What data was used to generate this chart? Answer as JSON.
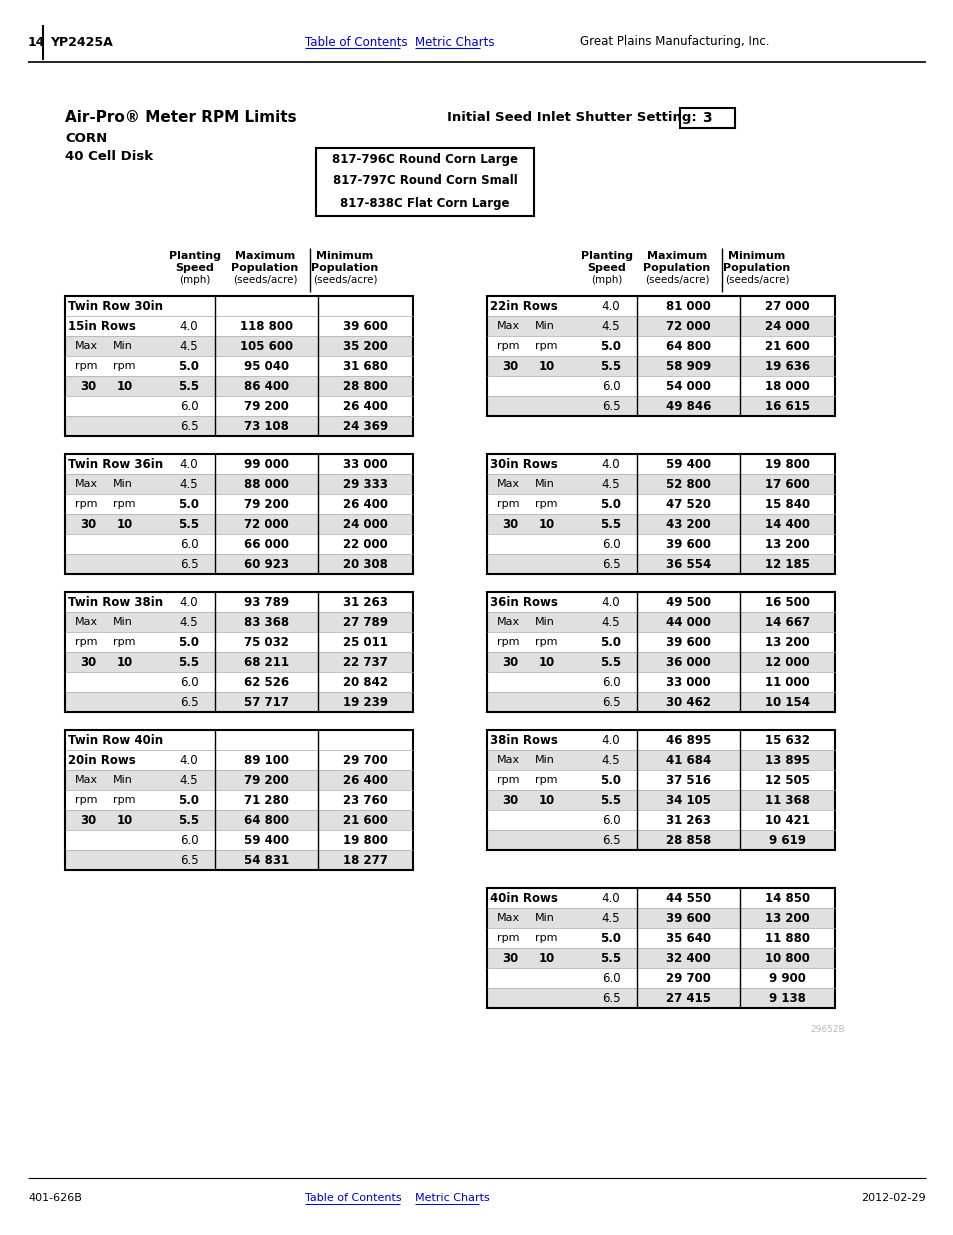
{
  "page_num": "14",
  "model": "YP2425A",
  "nav_links": [
    "Table of Contents",
    "Metric Charts"
  ],
  "company": "Great Plains Manufacturing, Inc.",
  "title": "Air-Pro® Meter RPM Limits",
  "subtitle1": "CORN",
  "subtitle2": "40 Cell Disk",
  "shutter_label": "Initial Seed Inlet Shutter Setting:",
  "shutter_value": "3",
  "disk_types": [
    "817-796C Round Corn Large",
    "817-797C Round Corn Small",
    "817-838C Flat Corn Large"
  ],
  "tables": [
    {
      "title_line1": "Twin Row 30in",
      "title_line2": "15in Rows",
      "speeds": [
        "4.0",
        "4.5",
        "5.0",
        "5.5",
        "6.0",
        "6.5"
      ],
      "max_pop": [
        "118 800",
        "105 600",
        "95 040",
        "86 400",
        "79 200",
        "73 108"
      ],
      "min_pop": [
        "39 600",
        "35 200",
        "31 680",
        "28 800",
        "26 400",
        "24 369"
      ]
    },
    {
      "title_line1": "22in Rows",
      "title_line2": "",
      "speeds": [
        "4.0",
        "4.5",
        "5.0",
        "5.5",
        "6.0",
        "6.5"
      ],
      "max_pop": [
        "81 000",
        "72 000",
        "64 800",
        "58 909",
        "54 000",
        "49 846"
      ],
      "min_pop": [
        "27 000",
        "24 000",
        "21 600",
        "19 636",
        "18 000",
        "16 615"
      ]
    },
    {
      "title_line1": "Twin Row 36in",
      "title_line2": "",
      "speeds": [
        "4.0",
        "4.5",
        "5.0",
        "5.5",
        "6.0",
        "6.5"
      ],
      "max_pop": [
        "99 000",
        "88 000",
        "79 200",
        "72 000",
        "66 000",
        "60 923"
      ],
      "min_pop": [
        "33 000",
        "29 333",
        "26 400",
        "24 000",
        "22 000",
        "20 308"
      ]
    },
    {
      "title_line1": "30in Rows",
      "title_line2": "",
      "speeds": [
        "4.0",
        "4.5",
        "5.0",
        "5.5",
        "6.0",
        "6.5"
      ],
      "max_pop": [
        "59 400",
        "52 800",
        "47 520",
        "43 200",
        "39 600",
        "36 554"
      ],
      "min_pop": [
        "19 800",
        "17 600",
        "15 840",
        "14 400",
        "13 200",
        "12 185"
      ]
    },
    {
      "title_line1": "Twin Row 38in",
      "title_line2": "",
      "speeds": [
        "4.0",
        "4.5",
        "5.0",
        "5.5",
        "6.0",
        "6.5"
      ],
      "max_pop": [
        "93 789",
        "83 368",
        "75 032",
        "68 211",
        "62 526",
        "57 717"
      ],
      "min_pop": [
        "31 263",
        "27 789",
        "25 011",
        "22 737",
        "20 842",
        "19 239"
      ]
    },
    {
      "title_line1": "36in Rows",
      "title_line2": "",
      "speeds": [
        "4.0",
        "4.5",
        "5.0",
        "5.5",
        "6.0",
        "6.5"
      ],
      "max_pop": [
        "49 500",
        "44 000",
        "39 600",
        "36 000",
        "33 000",
        "30 462"
      ],
      "min_pop": [
        "16 500",
        "14 667",
        "13 200",
        "12 000",
        "11 000",
        "10 154"
      ]
    },
    {
      "title_line1": "Twin Row 40in",
      "title_line2": "20in Rows",
      "speeds": [
        "4.0",
        "4.5",
        "5.0",
        "5.5",
        "6.0",
        "6.5"
      ],
      "max_pop": [
        "89 100",
        "79 200",
        "71 280",
        "64 800",
        "59 400",
        "54 831"
      ],
      "min_pop": [
        "29 700",
        "26 400",
        "23 760",
        "21 600",
        "19 800",
        "18 277"
      ]
    },
    {
      "title_line1": "38in Rows",
      "title_line2": "",
      "speeds": [
        "4.0",
        "4.5",
        "5.0",
        "5.5",
        "6.0",
        "6.5"
      ],
      "max_pop": [
        "46 895",
        "41 684",
        "37 516",
        "34 105",
        "31 263",
        "28 858"
      ],
      "min_pop": [
        "15 632",
        "13 895",
        "12 505",
        "11 368",
        "10 421",
        "9 619"
      ]
    },
    {
      "title_line1": "40in Rows",
      "title_line2": "",
      "speeds": [
        "4.0",
        "4.5",
        "5.0",
        "5.5",
        "6.0",
        "6.5"
      ],
      "max_pop": [
        "44 550",
        "39 600",
        "35 640",
        "32 400",
        "29 700",
        "27 415"
      ],
      "min_pop": [
        "14 850",
        "13 200",
        "11 880",
        "10 800",
        "9 900",
        "9 138"
      ]
    }
  ],
  "footer_left": "401-626B",
  "footer_nav": [
    "Table of Contents",
    "Metric Charts"
  ],
  "footer_right": "2012-02-29",
  "watermark": "29652B",
  "link_color": "#0000CC",
  "bg_color": "#ffffff",
  "alt_row_color": "#e0e0e0",
  "border_color": "#000000",
  "text_color": "#000000"
}
